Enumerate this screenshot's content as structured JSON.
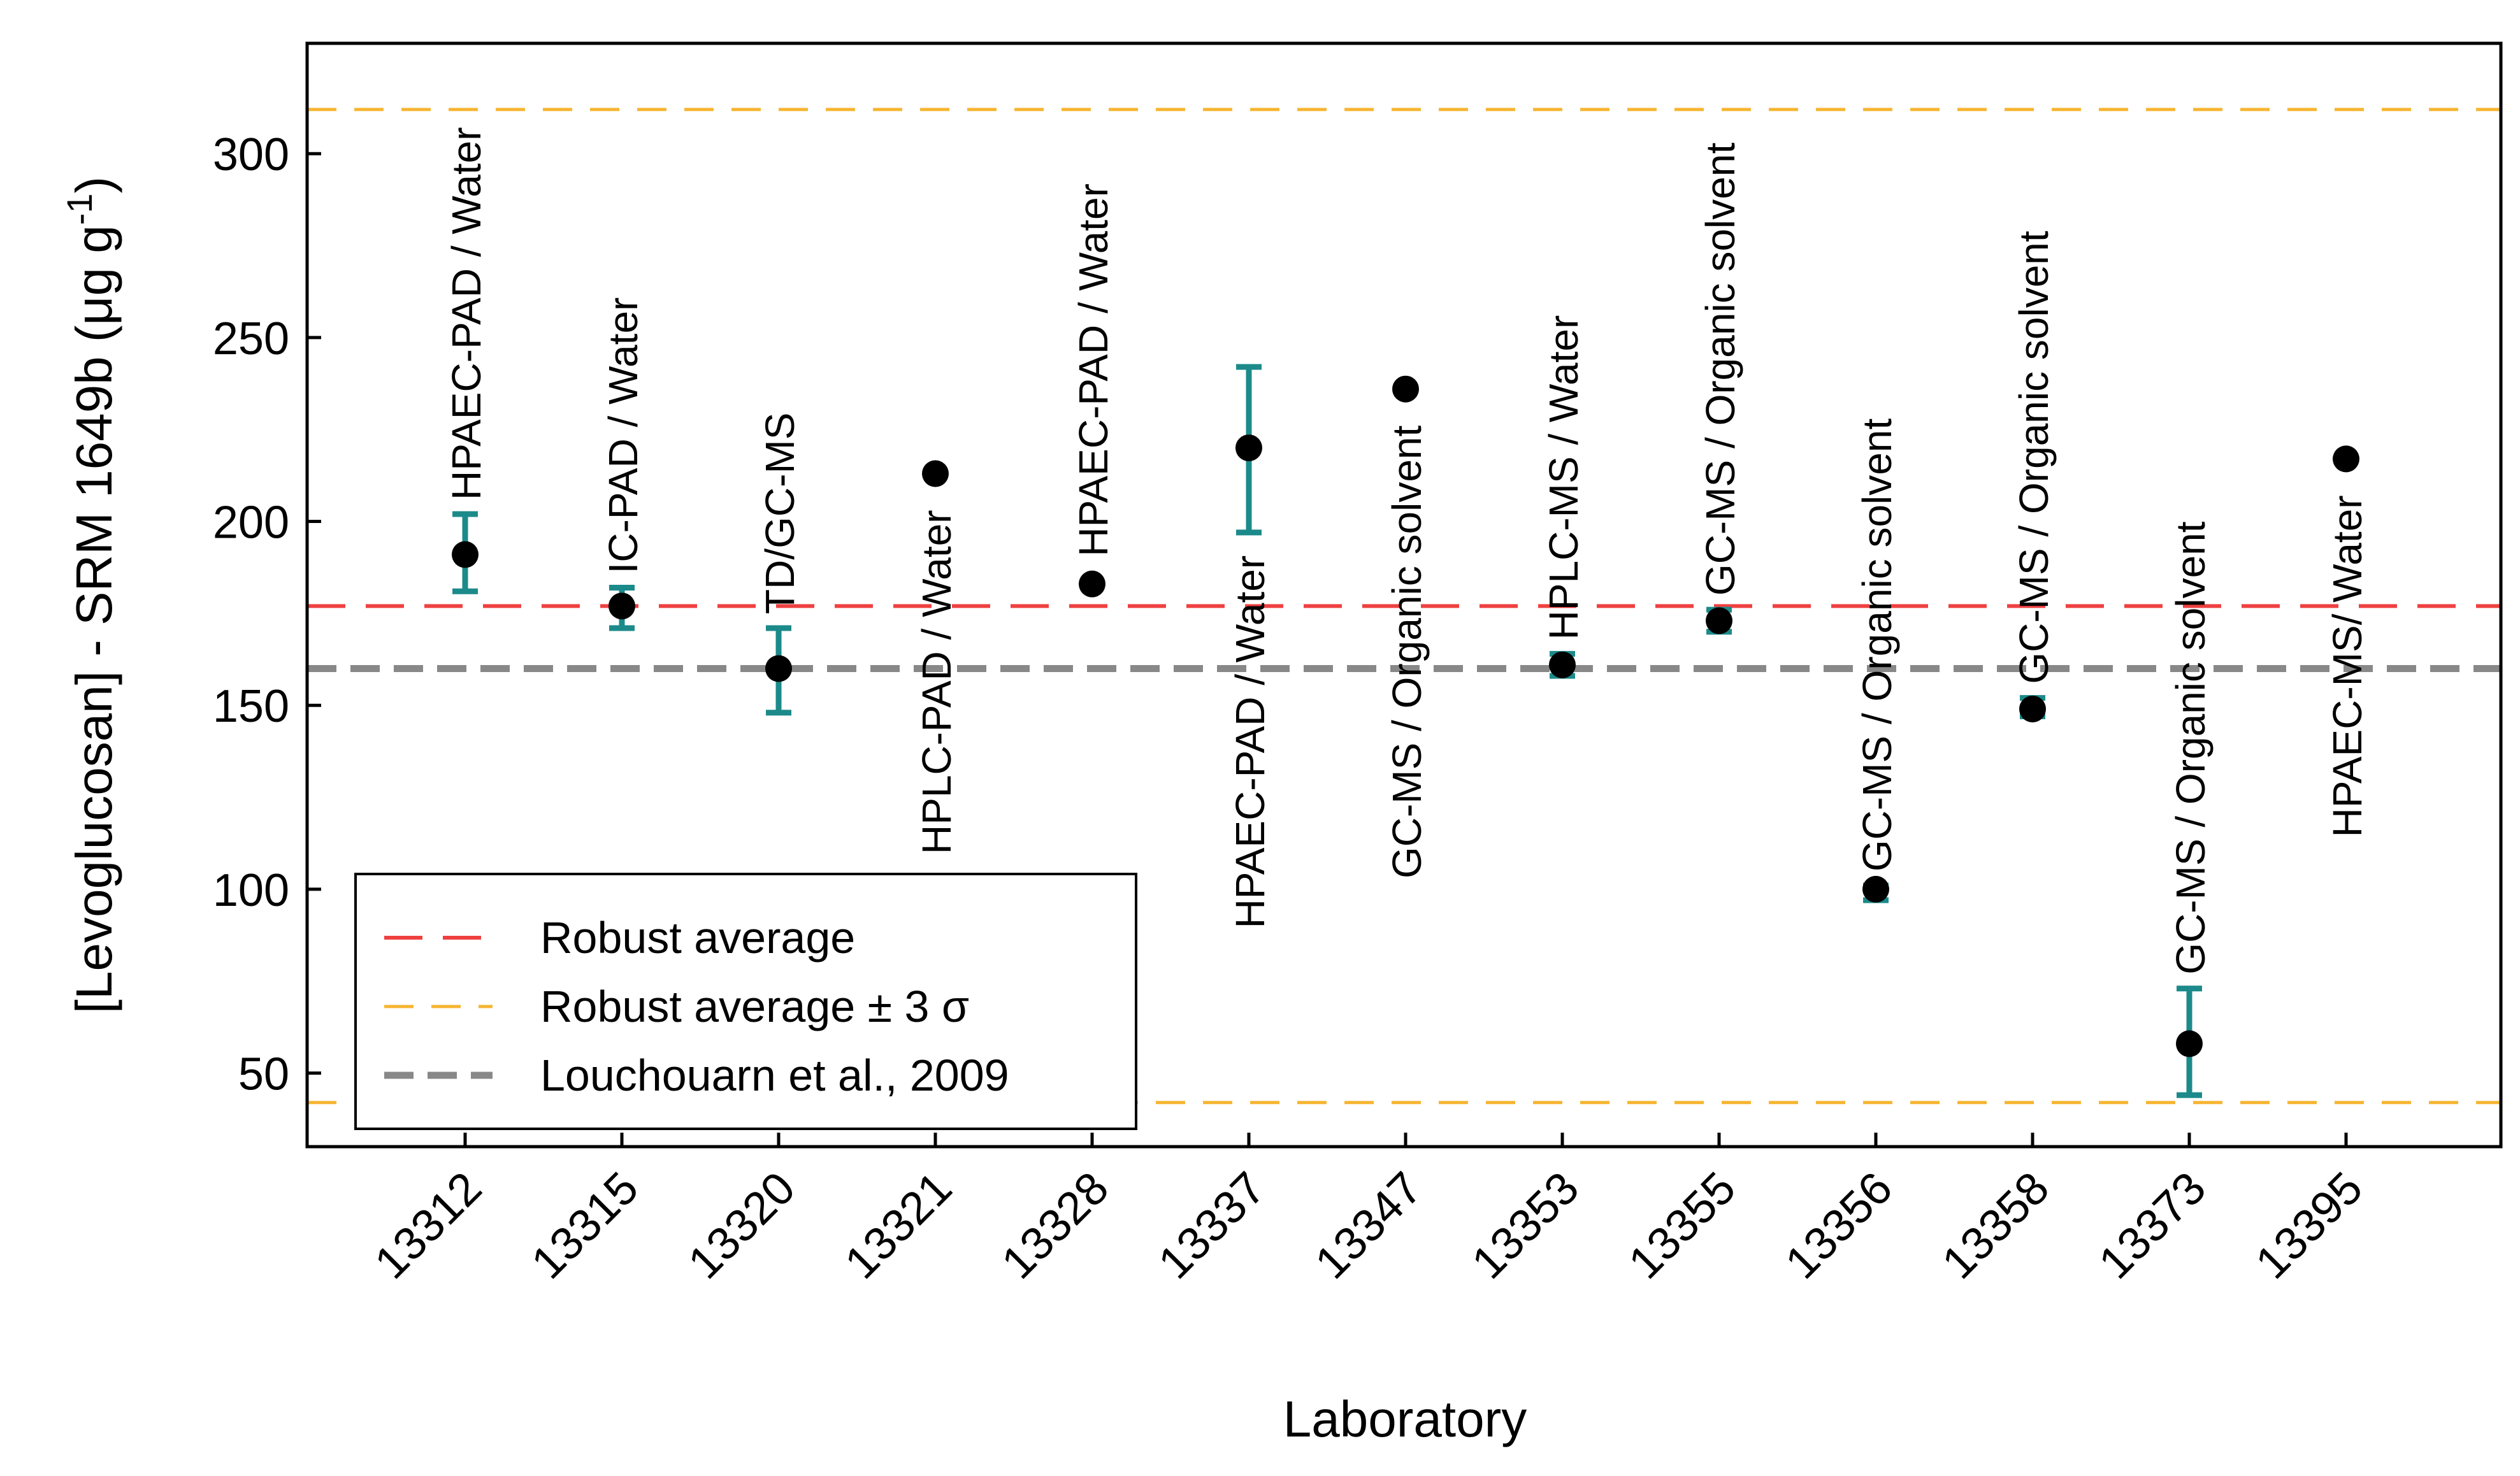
{
  "chart_data": {
    "type": "scatter",
    "title": "",
    "xlabel": "Laboratory",
    "ylabel_parts": {
      "main": "[Levoglucosan] - SRM 1649b (μg g",
      "superscript": "-1",
      "close": ")"
    },
    "ylim": [
      30,
      330
    ],
    "yticks": [
      50,
      100,
      150,
      200,
      250,
      300
    ],
    "categories": [
      "13312",
      "13315",
      "13320",
      "13321",
      "13328",
      "13337",
      "13347",
      "13353",
      "13355",
      "13356",
      "13358",
      "13373",
      "13395"
    ],
    "points": [
      {
        "lab": "13312",
        "value": 191,
        "err_low": 181,
        "err_high": 202,
        "method": "HPAEC-PAD / Water",
        "label_pos": "above"
      },
      {
        "lab": "13315",
        "value": 177,
        "err_low": 171,
        "err_high": 182,
        "method": "IC-PAD / Water",
        "label_pos": "above"
      },
      {
        "lab": "13320",
        "value": 160,
        "err_low": 148,
        "err_high": 171,
        "method": "TD/GC-MS",
        "label_pos": "above"
      },
      {
        "lab": "13321",
        "value": 213,
        "err_low": null,
        "err_high": null,
        "method": "HPLC-PAD / Water",
        "label_pos": "below"
      },
      {
        "lab": "13328",
        "value": 183,
        "err_low": null,
        "err_high": null,
        "method": "HPAEC-PAD / Water",
        "label_pos": "above"
      },
      {
        "lab": "13337",
        "value": 220,
        "err_low": 197,
        "err_high": 242,
        "method": "HPAEC-PAD / Water",
        "label_pos": "below"
      },
      {
        "lab": "13347",
        "value": 236,
        "err_low": null,
        "err_high": null,
        "method": "GC-MS / Organic solvent",
        "label_pos": "below"
      },
      {
        "lab": "13353",
        "value": 161,
        "err_low": 158,
        "err_high": 164,
        "method": "HPLC-MS / Water",
        "label_pos": "above"
      },
      {
        "lab": "13355",
        "value": 173,
        "err_low": 170,
        "err_high": 176,
        "method": "GC-MS / Organic solvent",
        "label_pos": "above"
      },
      {
        "lab": "13356",
        "value": 100,
        "err_low": 97,
        "err_high": 101,
        "method": "GC-MS / Organic solvent",
        "label_pos": "above"
      },
      {
        "lab": "13358",
        "value": 149,
        "err_low": 147,
        "err_high": 152,
        "method": "GC-MS / Organic solvent",
        "label_pos": "above"
      },
      {
        "lab": "13373",
        "value": 58,
        "err_low": 44,
        "err_high": 73,
        "method": "GC-MS / Organic solvent",
        "label_pos": "above"
      },
      {
        "lab": "13395",
        "value": 217,
        "err_low": null,
        "err_high": null,
        "method": "HPAEC-MS/ Water",
        "label_pos": "below"
      }
    ],
    "reference_lines": [
      {
        "name": "robust_average",
        "value": 177,
        "color": "#ef4040",
        "dash": "long"
      },
      {
        "name": "upper_3sigma",
        "value": 312,
        "color": "#f6b530",
        "dash": "medium"
      },
      {
        "name": "lower_3sigma",
        "value": 42,
        "color": "#f6b530",
        "dash": "medium"
      },
      {
        "name": "louchouarn",
        "value": 160,
        "color": "#888888",
        "dash": "thick"
      }
    ],
    "legend": {
      "position": "bottom-left",
      "entries": [
        {
          "label": "Robust average",
          "color": "#ef4040",
          "dash": "long"
        },
        {
          "label": "Robust average ± 3 σ",
          "color": "#f6b530",
          "dash": "medium"
        },
        {
          "label": "Louchouarn et al., 2009",
          "color": "#888888",
          "dash": "thick"
        }
      ]
    },
    "colors": {
      "marker": "#000000",
      "errorbar": "#1c8a8a"
    }
  }
}
